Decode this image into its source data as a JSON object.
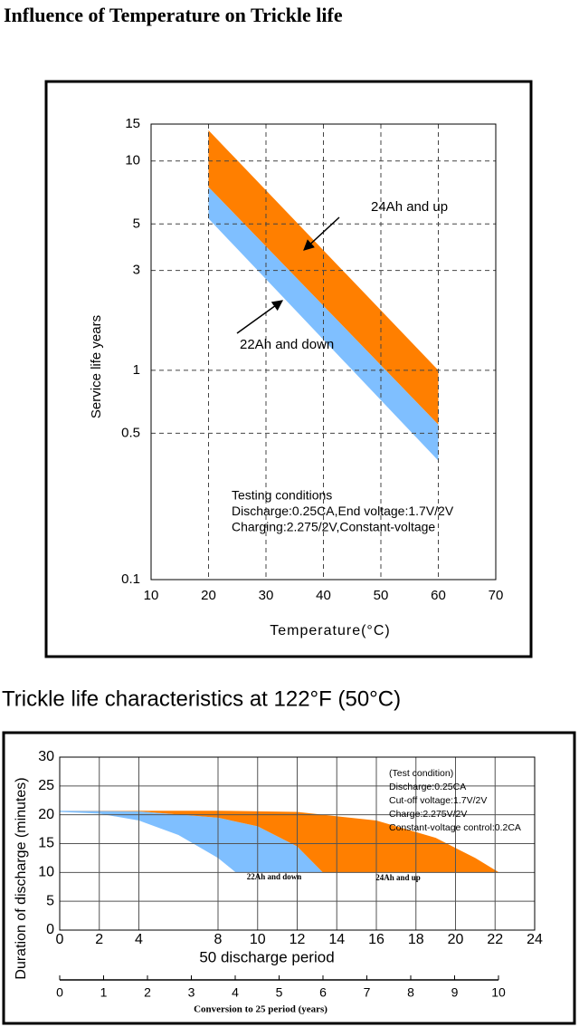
{
  "chart_data": [
    {
      "type": "band",
      "title": "Influence of Temperature on Trickle life",
      "x_label": "Temperature(°C)",
      "y_label": "Service life years",
      "xlim": [
        10,
        70
      ],
      "xticks": [
        10,
        20,
        30,
        40,
        50,
        60,
        70
      ],
      "ylim": [
        0.1,
        15
      ],
      "yticks": [
        0.1,
        0.5,
        1,
        3,
        5,
        10,
        15
      ],
      "log_y": true,
      "grid": true,
      "series": [
        {
          "name": "24Ah and up",
          "color": "#ff7f00",
          "x": [
            20,
            60
          ],
          "upper": [
            14,
            1.0
          ],
          "lower": [
            7.5,
            0.55
          ]
        },
        {
          "name": "22Ah and down",
          "color": "#7fbfff",
          "x": [
            20,
            60
          ],
          "upper": [
            7.5,
            0.55
          ],
          "lower": [
            5.3,
            0.37
          ]
        }
      ],
      "notes": [
        "Testing conditions",
        "Discharge:0.25CA,End voltage:1.7V/2V",
        "Charging:2.275/2V,Constant-voltage"
      ]
    },
    {
      "type": "band",
      "title": "Trickle life characteristics at 122°F (50°C)",
      "x_label": "50 discharge period",
      "y_label": "Duration of discharge (minutes)",
      "xlim": [
        0,
        24
      ],
      "xticks": [
        0,
        2,
        4,
        8,
        10,
        12,
        14,
        16,
        18,
        20,
        22,
        24
      ],
      "ylim": [
        0,
        30
      ],
      "yticks": [
        0,
        5,
        10,
        15,
        20,
        25,
        30
      ],
      "grid": true,
      "x2_label": "Conversion to 25 period (years)",
      "x2lim": [
        0,
        10
      ],
      "x2ticks": [
        0,
        1,
        2,
        3,
        4,
        5,
        6,
        7,
        8,
        9,
        10
      ],
      "series": [
        {
          "name": "22Ah and down",
          "color": "#7fbfff",
          "edge_a": {
            "x": [
              0,
              2,
              4,
              6,
              8,
              8.9
            ],
            "values": [
              20.5,
              20.2,
              19,
              16.5,
              12.5,
              10
            ]
          },
          "edge_b": {
            "x": [
              0,
              4,
              8,
              10,
              12,
              13.3
            ],
            "values": [
              20.7,
              20.6,
              19.5,
              18,
              14.5,
              10
            ]
          }
        },
        {
          "name": "24Ah and up",
          "color": "#ff7f00",
          "edge_a": {
            "x": [
              0,
              4,
              8,
              10,
              12,
              13.3
            ],
            "values": [
              20.7,
              20.6,
              19.5,
              18,
              14.5,
              10
            ]
          },
          "edge_b": {
            "x": [
              0,
              8,
              12,
              16,
              19,
              21,
              22.2
            ],
            "values": [
              20.7,
              20.7,
              20.5,
              19,
              16,
              12.5,
              10
            ]
          }
        }
      ],
      "notes": [
        "(Test condition)",
        "Discharge:0.25CA",
        "Cut-off voltage:1.7V/2V",
        "Charge:2.275V/2V",
        "Constant-voltage control:0.2CA"
      ]
    }
  ]
}
